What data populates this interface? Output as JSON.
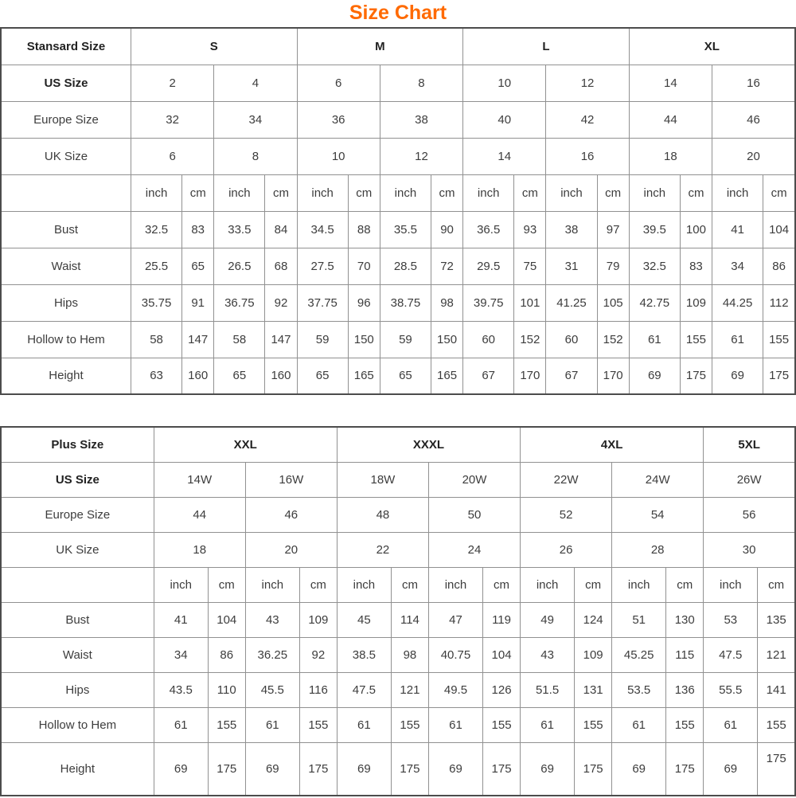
{
  "title": "Size Chart",
  "colors": {
    "title_accent": "#ff6a00",
    "text": "#3d3d3d",
    "border": "#919191"
  },
  "tables": [
    {
      "id": "standard",
      "corner_label": "Stansard Size",
      "groups": [
        {
          "label": "S",
          "span": 2
        },
        {
          "label": "M",
          "span": 2
        },
        {
          "label": "L",
          "span": 2
        },
        {
          "label": "XL",
          "span": 2
        }
      ],
      "size_rows": [
        {
          "label": "US Size",
          "bold": true,
          "values": [
            "2",
            "4",
            "6",
            "8",
            "10",
            "12",
            "14",
            "16"
          ]
        },
        {
          "label": "Europe Size",
          "bold": false,
          "values": [
            "32",
            "34",
            "36",
            "38",
            "40",
            "42",
            "44",
            "46"
          ]
        },
        {
          "label": "UK Size",
          "bold": false,
          "values": [
            "6",
            "8",
            "10",
            "12",
            "14",
            "16",
            "18",
            "20"
          ]
        }
      ],
      "units": {
        "inch": "inch",
        "cm": "cm"
      },
      "measure_rows": [
        {
          "label": "Bust",
          "values": [
            "32.5",
            "83",
            "33.5",
            "84",
            "34.5",
            "88",
            "35.5",
            "90",
            "36.5",
            "93",
            "38",
            "97",
            "39.5",
            "100",
            "41",
            "104"
          ]
        },
        {
          "label": "Waist",
          "values": [
            "25.5",
            "65",
            "26.5",
            "68",
            "27.5",
            "70",
            "28.5",
            "72",
            "29.5",
            "75",
            "31",
            "79",
            "32.5",
            "83",
            "34",
            "86"
          ]
        },
        {
          "label": "Hips",
          "values": [
            "35.75",
            "91",
            "36.75",
            "92",
            "37.75",
            "96",
            "38.75",
            "98",
            "39.75",
            "101",
            "41.25",
            "105",
            "42.75",
            "109",
            "44.25",
            "112"
          ]
        },
        {
          "label": "Hollow to Hem",
          "values": [
            "58",
            "147",
            "58",
            "147",
            "59",
            "150",
            "59",
            "150",
            "60",
            "152",
            "60",
            "152",
            "61",
            "155",
            "61",
            "155"
          ]
        },
        {
          "label": "Height",
          "values": [
            "63",
            "160",
            "65",
            "160",
            "65",
            "165",
            "65",
            "165",
            "67",
            "170",
            "67",
            "170",
            "69",
            "175",
            "69",
            "175"
          ]
        }
      ]
    },
    {
      "id": "plus",
      "corner_label": "Plus Size",
      "groups": [
        {
          "label": "XXL",
          "span": 2
        },
        {
          "label": "XXXL",
          "span": 2
        },
        {
          "label": "4XL",
          "span": 2
        },
        {
          "label": "5XL",
          "span": 1
        }
      ],
      "size_rows": [
        {
          "label": "US Size",
          "bold": true,
          "values": [
            "14W",
            "16W",
            "18W",
            "20W",
            "22W",
            "24W",
            "26W"
          ]
        },
        {
          "label": "Europe Size",
          "bold": false,
          "values": [
            "44",
            "46",
            "48",
            "50",
            "52",
            "54",
            "56"
          ]
        },
        {
          "label": "UK Size",
          "bold": false,
          "values": [
            "18",
            "20",
            "22",
            "24",
            "26",
            "28",
            "30"
          ]
        }
      ],
      "units": {
        "inch": "inch",
        "cm": "cm"
      },
      "measure_rows": [
        {
          "label": "Bust",
          "values": [
            "41",
            "104",
            "43",
            "109",
            "45",
            "114",
            "47",
            "119",
            "49",
            "124",
            "51",
            "130",
            "53",
            "135"
          ]
        },
        {
          "label": "Waist",
          "values": [
            "34",
            "86",
            "36.25",
            "92",
            "38.5",
            "98",
            "40.75",
            "104",
            "43",
            "109",
            "45.25",
            "115",
            "47.5",
            "121"
          ]
        },
        {
          "label": "Hips",
          "values": [
            "43.5",
            "110",
            "45.5",
            "116",
            "47.5",
            "121",
            "49.5",
            "126",
            "51.5",
            "131",
            "53.5",
            "136",
            "55.5",
            "141"
          ]
        },
        {
          "label": "Hollow to Hem",
          "values": [
            "61",
            "155",
            "61",
            "155",
            "61",
            "155",
            "61",
            "155",
            "61",
            "155",
            "61",
            "155",
            "61",
            "155"
          ]
        },
        {
          "label": "Height",
          "values": [
            "69",
            "175",
            "69",
            "175",
            "69",
            "175",
            "69",
            "175",
            "69",
            "175",
            "69",
            "175",
            "69",
            "175"
          ]
        }
      ]
    }
  ]
}
